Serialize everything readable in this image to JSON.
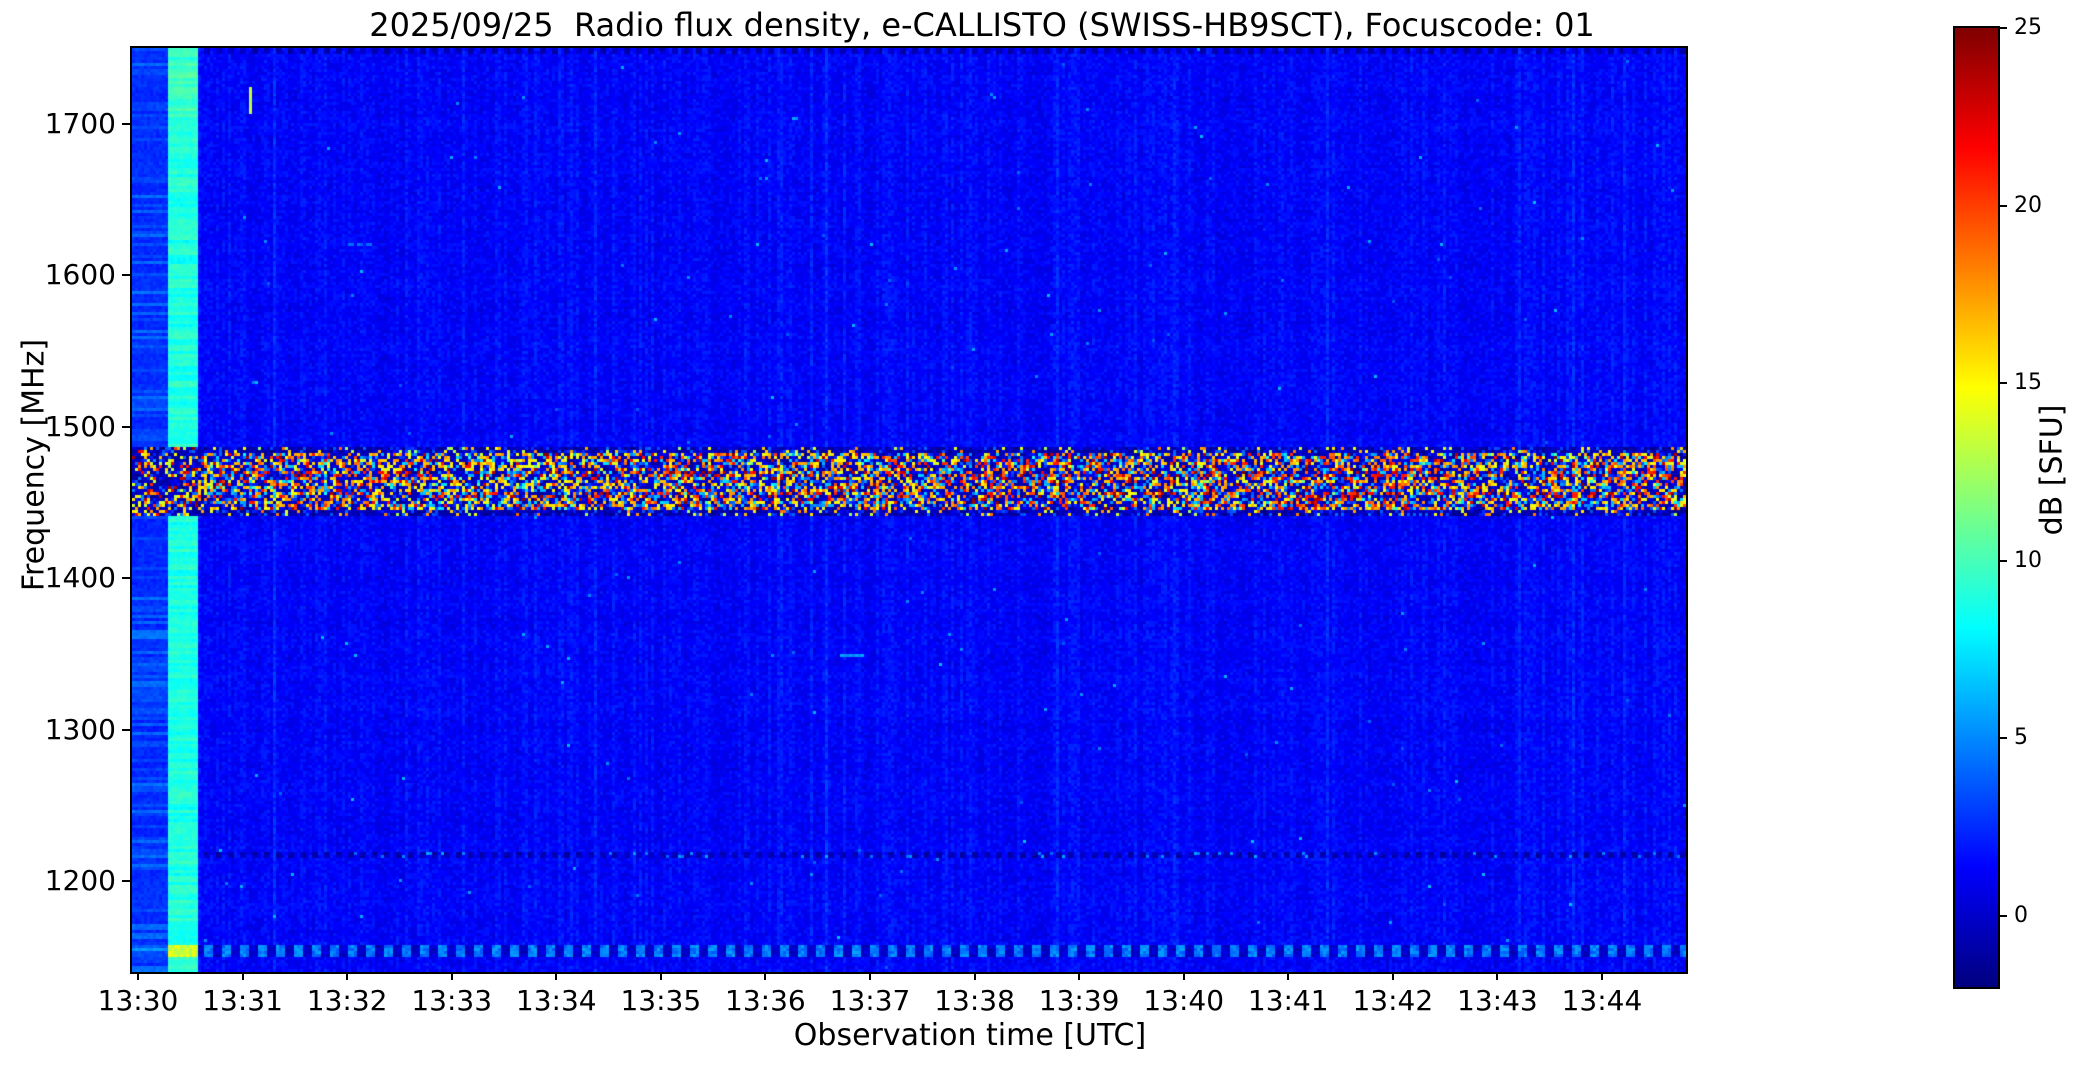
{
  "figure": {
    "title": "2025/09/25  Radio flux density, e-CALLISTO (SWISS-HB9SCT), Focuscode: 01",
    "background_color": "#ffffff",
    "text_color": "#000000"
  },
  "chart_data": {
    "type": "heatmap",
    "subtype": "radio-spectrogram",
    "title": "2025/09/25  Radio flux density, e-CALLISTO (SWISS-HB9SCT), Focuscode: 01",
    "xlabel": "Observation time [UTC]",
    "ylabel": "Frequency [MHz]",
    "colorbar_label": "dB [SFU]",
    "x_ticks": [
      "13:30",
      "13:31",
      "13:32",
      "13:33",
      "13:34",
      "13:35",
      "13:36",
      "13:37",
      "13:38",
      "13:39",
      "13:40",
      "13:41",
      "13:42",
      "13:43",
      "13:44"
    ],
    "x_range_minutes": [
      0,
      14.85
    ],
    "y_ticks": [
      1700,
      1600,
      1500,
      1400,
      1300,
      1200
    ],
    "y_range_mhz": [
      1140,
      1750
    ],
    "colorbar_ticks": [
      25,
      20,
      15,
      10,
      5,
      0
    ],
    "colorbar_range": [
      -2,
      25
    ],
    "colormap": "jet",
    "colormap_stops": [
      "#00007F",
      "#0000FF",
      "#007FFF",
      "#00FFFF",
      "#7FFF7F",
      "#FFFF00",
      "#FF7F00",
      "#FF0000",
      "#7F0000"
    ],
    "grid": false,
    "legend": "none",
    "background_level_db": 1.3,
    "features": {
      "left_edge_column": {
        "t_start_min": 0.0,
        "t_end_min": 0.29,
        "level_db": 3.2,
        "description": "lighter blue startup column with horizontal line structure"
      },
      "calibration_stripe": {
        "t_start_min": 0.29,
        "t_end_min": 0.57,
        "level_db": 9.5,
        "description": "cyan-green vertical calibration stripe"
      },
      "rfi_band": {
        "f_start_mhz": 1444,
        "f_end_mhz": 1487,
        "description": "strong broadband RFI, mottled dark-navy/yellow/orange/red across entire duration"
      },
      "dashed_row_upper": {
        "f_mhz": 1220,
        "description": "faint dark dashed horizontal row"
      },
      "dashed_row_lower": {
        "f_mhz": 1158,
        "description": "light-blue/dark alternating dashed row near bottom edge"
      },
      "artifacts": [
        {
          "name": "green-dash",
          "t_min": 1.07,
          "f_mhz": 1725,
          "len_mhz": 18,
          "w_cells": 1,
          "level_db": 13.0,
          "dashed": false
        },
        {
          "name": "faint-cyan-dash-upper",
          "t_min": 2.0,
          "f_mhz": 1622,
          "len_cells": 9,
          "h_cells": 1,
          "level_db": 4.3,
          "dashed": true
        },
        {
          "name": "faint-cyan-dash-mid",
          "t_min": 6.7,
          "f_mhz": 1349,
          "len_cells": 8,
          "h_cells": 1,
          "level_db": 5.2,
          "dashed": false
        }
      ]
    }
  }
}
